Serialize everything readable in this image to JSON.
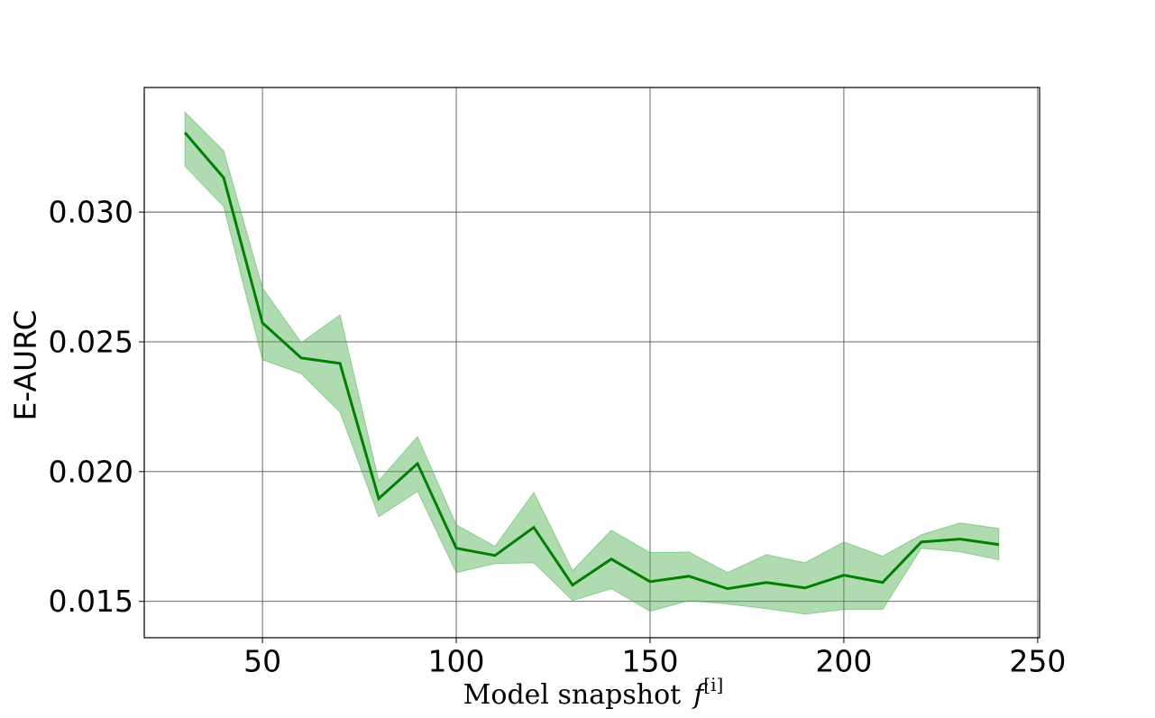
{
  "chart_data": {
    "type": "line",
    "ylabel": "E-AURC",
    "xlabel": "Model snapshot",
    "xlabel_symbol": "f",
    "xlabel_superscript": "[i]",
    "x": [
      30,
      40,
      50,
      60,
      70,
      80,
      90,
      100,
      110,
      120,
      130,
      140,
      150,
      160,
      170,
      180,
      190,
      200,
      210,
      220,
      230,
      240
    ],
    "values": [
      0.03306,
      0.03132,
      0.02573,
      0.02438,
      0.02417,
      0.01896,
      0.02031,
      0.01705,
      0.01677,
      0.01785,
      0.01563,
      0.01663,
      0.01576,
      0.01597,
      0.01549,
      0.01573,
      0.01552,
      0.01601,
      0.01573,
      0.01729,
      0.0174,
      0.01719
    ],
    "upper": [
      0.03385,
      0.03236,
      0.02708,
      0.02497,
      0.02604,
      0.01965,
      0.02135,
      0.01795,
      0.01712,
      0.0192,
      0.01618,
      0.01774,
      0.01688,
      0.0169,
      0.01611,
      0.0168,
      0.01649,
      0.01729,
      0.01674,
      0.01757,
      0.01802,
      0.01781
    ],
    "lower": [
      0.03177,
      0.03021,
      0.02431,
      0.02378,
      0.02229,
      0.01826,
      0.01924,
      0.01611,
      0.01646,
      0.01649,
      0.01503,
      0.01549,
      0.01462,
      0.01503,
      0.0149,
      0.01472,
      0.01451,
      0.01469,
      0.01469,
      0.01705,
      0.01691,
      0.0166
    ],
    "color": "#008000",
    "band_color": "#4caf50",
    "xlim": [
      19.5,
      250.5
    ],
    "ylim": [
      0.0136,
      0.0348
    ],
    "xticks": [
      50,
      100,
      150,
      200,
      250
    ],
    "yticks": [
      0.015,
      {
        "value": 0.02,
        "label": "0.020"
      },
      0.025,
      {
        "value": 0.03,
        "label": "0.030"
      }
    ],
    "grid": true
  }
}
